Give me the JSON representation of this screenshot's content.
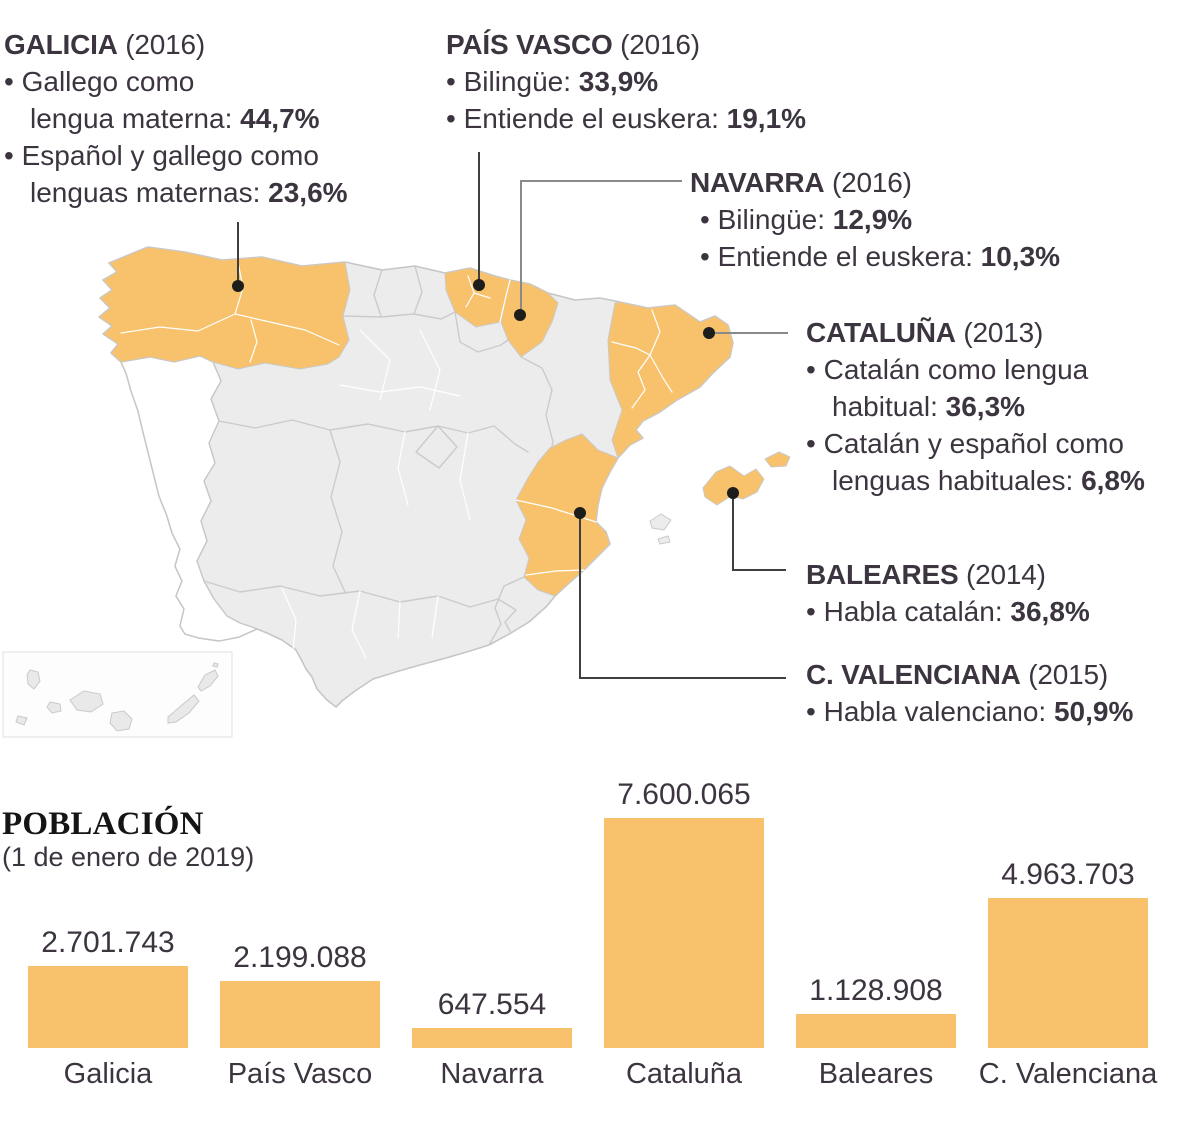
{
  "colors": {
    "accent_orange": "#f7c26b",
    "map_gray_fill": "#ececec",
    "map_border": "#c6c6c6",
    "text_dark": "#3c3540",
    "connector_dark": "#3f3f3f",
    "connector_light": "#8a8a8a",
    "dot_black": "#1d1d1b"
  },
  "callouts": [
    {
      "id": "galicia",
      "name": "GALICIA",
      "year": "(2016)",
      "lines": [
        {
          "bullet": true,
          "text": "Gallego como",
          "bold": ""
        },
        {
          "bullet": false,
          "text": "lengua materna: ",
          "bold": "44,7%"
        },
        {
          "bullet": true,
          "text": "Español y gallego como",
          "bold": ""
        },
        {
          "bullet": false,
          "text": "lenguas maternas: ",
          "bold": "23,6%"
        }
      ]
    },
    {
      "id": "pais-vasco",
      "name": "PAÍS VASCO",
      "year": "(2016)",
      "lines": [
        {
          "bullet": true,
          "text": "Bilingüe: ",
          "bold": "33,9%"
        },
        {
          "bullet": true,
          "text": "Entiende el euskera: ",
          "bold": "19,1%"
        }
      ]
    },
    {
      "id": "navarra",
      "name": "NAVARRA",
      "year": "(2016)",
      "lines": [
        {
          "bullet": true,
          "text": "Bilingüe: ",
          "bold": "12,9%"
        },
        {
          "bullet": true,
          "text": "Entiende el euskera: ",
          "bold": "10,3%"
        }
      ]
    },
    {
      "id": "cataluna",
      "name": "CATALUÑA",
      "year": "(2013)",
      "lines": [
        {
          "bullet": true,
          "text": "Catalán como lengua",
          "bold": ""
        },
        {
          "bullet": false,
          "text": "habitual: ",
          "bold": "36,3%"
        },
        {
          "bullet": true,
          "text": "Catalán y español como",
          "bold": ""
        },
        {
          "bullet": false,
          "text": "lenguas habituales: ",
          "bold": "6,8%"
        }
      ]
    },
    {
      "id": "baleares",
      "name": "BALEARES",
      "year": "(2014)",
      "lines": [
        {
          "bullet": true,
          "text": "Habla catalán: ",
          "bold": "36,8%"
        }
      ]
    },
    {
      "id": "c-valenciana",
      "name": "C. VALENCIANA",
      "year": "(2015)",
      "lines": [
        {
          "bullet": true,
          "text": "Habla valenciano: ",
          "bold": "50,9%"
        }
      ]
    }
  ],
  "population": {
    "title": "POBLACIÓN",
    "subtitle": "(1 de enero de 2019)"
  },
  "chart_data": [
    {
      "type": "map",
      "highlighted_regions": [
        "Galicia",
        "País Vasco",
        "Navarra",
        "Cataluña",
        "Baleares",
        "C. Valenciana"
      ],
      "annotations": [
        {
          "region": "GALICIA",
          "year": 2016,
          "stats": [
            {
              "label": "Gallego como lengua materna",
              "value_pct": 44.7
            },
            {
              "label": "Español y gallego como lenguas maternas",
              "value_pct": 23.6
            }
          ]
        },
        {
          "region": "PAÍS VASCO",
          "year": 2016,
          "stats": [
            {
              "label": "Bilingüe",
              "value_pct": 33.9
            },
            {
              "label": "Entiende el euskera",
              "value_pct": 19.1
            }
          ]
        },
        {
          "region": "NAVARRA",
          "year": 2016,
          "stats": [
            {
              "label": "Bilingüe",
              "value_pct": 12.9
            },
            {
              "label": "Entiende el euskera",
              "value_pct": 10.3
            }
          ]
        },
        {
          "region": "CATALUÑA",
          "year": 2013,
          "stats": [
            {
              "label": "Catalán como lengua habitual",
              "value_pct": 36.3
            },
            {
              "label": "Catalán y español como lenguas habituales",
              "value_pct": 6.8
            }
          ]
        },
        {
          "region": "BALEARES",
          "year": 2014,
          "stats": [
            {
              "label": "Habla catalán",
              "value_pct": 36.8
            }
          ]
        },
        {
          "region": "C. VALENCIANA",
          "year": 2015,
          "stats": [
            {
              "label": "Habla valenciano",
              "value_pct": 50.9
            }
          ]
        }
      ]
    },
    {
      "type": "bar",
      "title": "POBLACIÓN",
      "subtitle": "(1 de enero de 2019)",
      "categories": [
        "Galicia",
        "País Vasco",
        "Navarra",
        "Cataluña",
        "Baleares",
        "C. Valenciana"
      ],
      "values": [
        2701743,
        2199088,
        647554,
        7600065,
        1128908,
        4963703
      ],
      "value_labels": [
        "2.701.743",
        "2.199.088",
        "647.554",
        "7.600.065",
        "1.128.908",
        "4.963.703"
      ],
      "ylim": [
        0,
        7600065
      ],
      "grid": false,
      "legend": "none"
    }
  ]
}
